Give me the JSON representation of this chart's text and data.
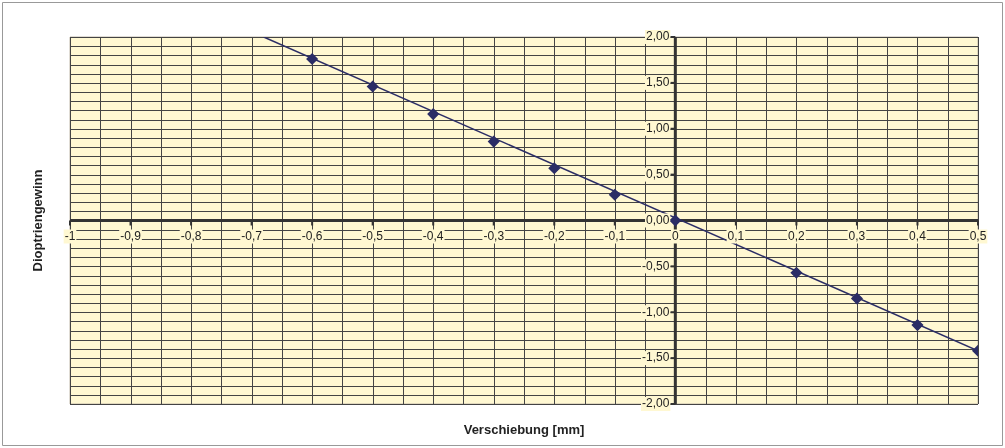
{
  "chart_data": {
    "type": "scatter",
    "xlabel": "Verschiebung [mm]",
    "ylabel": "Dioptriengewinn",
    "series": [
      {
        "type": "scatter",
        "color": "#2b2d66",
        "x": [
          -0.6,
          -0.5,
          -0.4,
          -0.3,
          -0.2,
          -0.1,
          0,
          0.2,
          0.3,
          0.4,
          0.5
        ],
        "values": [
          1.76,
          1.46,
          1.16,
          0.86,
          0.57,
          0.28,
          0,
          -0.57,
          -0.85,
          -1.14,
          -1.42
        ]
      },
      {
        "type": "line",
        "color": "#2b2d66",
        "marker": "none",
        "x": [
          -0.68,
          0.5
        ],
        "values": [
          2.0,
          -1.42
        ]
      }
    ],
    "marker": "diamond",
    "grid": true,
    "legend": false,
    "xlim": [
      -1,
      0.5
    ],
    "ylim": [
      -2,
      2
    ],
    "xticks": [
      {
        "value": -1,
        "label": "-1"
      },
      {
        "value": -0.95,
        "label": null
      },
      {
        "value": -0.9,
        "label": "-0,9"
      },
      {
        "value": -0.85,
        "label": null
      },
      {
        "value": -0.8,
        "label": "-0,8"
      },
      {
        "value": -0.75,
        "label": null
      },
      {
        "value": -0.7,
        "label": "-0,7"
      },
      {
        "value": -0.65,
        "label": null
      },
      {
        "value": -0.6,
        "label": "-0,6"
      },
      {
        "value": -0.55,
        "label": null
      },
      {
        "value": -0.5,
        "label": "-0,5"
      },
      {
        "value": -0.45,
        "label": null
      },
      {
        "value": -0.4,
        "label": "-0,4"
      },
      {
        "value": -0.35,
        "label": null
      },
      {
        "value": -0.3,
        "label": "-0,3"
      },
      {
        "value": -0.25,
        "label": null
      },
      {
        "value": -0.2,
        "label": "-0,2"
      },
      {
        "value": -0.15,
        "label": null
      },
      {
        "value": -0.1,
        "label": "-0,1"
      },
      {
        "value": -0.05,
        "label": null
      },
      {
        "value": 0,
        "label": "0"
      },
      {
        "value": 0.05,
        "label": null
      },
      {
        "value": 0.1,
        "label": "0,1"
      },
      {
        "value": 0.15,
        "label": null
      },
      {
        "value": 0.2,
        "label": "0,2"
      },
      {
        "value": 0.25,
        "label": null
      },
      {
        "value": 0.3,
        "label": "0,3"
      },
      {
        "value": 0.35,
        "label": null
      },
      {
        "value": 0.4,
        "label": "0,4"
      },
      {
        "value": 0.45,
        "label": null
      },
      {
        "value": 0.5,
        "label": "0,5"
      }
    ],
    "yticks": [
      {
        "value": -2,
        "label": "-2,00"
      },
      {
        "value": -1.9,
        "label": null
      },
      {
        "value": -1.8,
        "label": null
      },
      {
        "value": -1.7,
        "label": null
      },
      {
        "value": -1.6,
        "label": null
      },
      {
        "value": -1.5,
        "label": "-1,50"
      },
      {
        "value": -1.4,
        "label": null
      },
      {
        "value": -1.3,
        "label": null
      },
      {
        "value": -1.2,
        "label": null
      },
      {
        "value": -1.1,
        "label": null
      },
      {
        "value": -1,
        "label": "-1,00"
      },
      {
        "value": -0.9,
        "label": null
      },
      {
        "value": -0.8,
        "label": null
      },
      {
        "value": -0.7,
        "label": null
      },
      {
        "value": -0.6,
        "label": null
      },
      {
        "value": -0.5,
        "label": "-0,50"
      },
      {
        "value": -0.4,
        "label": null
      },
      {
        "value": -0.3,
        "label": null
      },
      {
        "value": -0.2,
        "label": null
      },
      {
        "value": -0.1,
        "label": null
      },
      {
        "value": 0,
        "label": "0,00"
      },
      {
        "value": 0.1,
        "label": null
      },
      {
        "value": 0.2,
        "label": null
      },
      {
        "value": 0.3,
        "label": null
      },
      {
        "value": 0.4,
        "label": null
      },
      {
        "value": 0.5,
        "label": "0,50"
      },
      {
        "value": 0.6,
        "label": null
      },
      {
        "value": 0.7,
        "label": null
      },
      {
        "value": 0.8,
        "label": null
      },
      {
        "value": 0.9,
        "label": null
      },
      {
        "value": 1,
        "label": "1,00"
      },
      {
        "value": 1.1,
        "label": null
      },
      {
        "value": 1.2,
        "label": null
      },
      {
        "value": 1.3,
        "label": null
      },
      {
        "value": 1.4,
        "label": null
      },
      {
        "value": 1.5,
        "label": "1,50"
      },
      {
        "value": 1.6,
        "label": null
      },
      {
        "value": 1.7,
        "label": null
      },
      {
        "value": 1.8,
        "label": null
      },
      {
        "value": 1.9,
        "label": null
      },
      {
        "value": 2,
        "label": "2,00"
      }
    ]
  }
}
